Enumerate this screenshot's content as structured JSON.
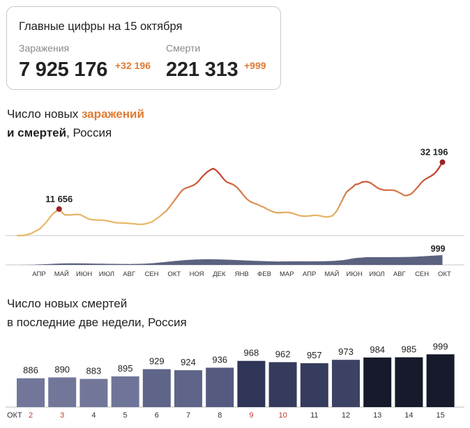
{
  "summary": {
    "title": "Главные цифры на 15 октября",
    "infections_label": "Заражения",
    "infections_value": "7 925 176",
    "infections_delta": "+32 196",
    "deaths_label": "Смерти",
    "deaths_value": "221 313",
    "deaths_delta": "+999"
  },
  "line_heading": {
    "line1_prefix": "Число новых ",
    "line1_highlight": "заражений",
    "line2_bold": "и смертей",
    "line2_rest": ", Россия"
  },
  "bar_heading": {
    "line1": "Число новых смертей",
    "line2": "в последние две недели, Россия"
  },
  "colors": {
    "infections_low": "#e8b86a",
    "infections_high": "#c0392b",
    "deaths_fill": "#3e4768",
    "peak_marker": "#9b2226",
    "accent": "#e07a33"
  },
  "chart_data": [
    {
      "type": "line",
      "x_unit": "month",
      "x_tick_labels": [
        "АПР",
        "МАЙ",
        "ИЮН",
        "ИЮЛ",
        "АВГ",
        "СЕН",
        "ОКТ",
        "НОЯ",
        "ДЕК",
        "ЯНВ",
        "ФЕВ",
        "МАР",
        "АПР",
        "МАЙ",
        "ИЮН",
        "ИЮЛ",
        "АВГ",
        "СЕН",
        "ОКТ"
      ],
      "series": [
        {
          "name": "заражений",
          "points": [
            [
              0,
              0
            ],
            [
              0.3,
              120
            ],
            [
              0.6,
              900
            ],
            [
              1.0,
              3000
            ],
            [
              1.3,
              6000
            ],
            [
              1.6,
              9500
            ],
            [
              1.85,
              11656
            ],
            [
              2.1,
              9500
            ],
            [
              2.4,
              9000
            ],
            [
              2.8,
              8900
            ],
            [
              3.2,
              7500
            ],
            [
              3.6,
              6700
            ],
            [
              4.0,
              6300
            ],
            [
              4.5,
              5800
            ],
            [
              5.0,
              5100
            ],
            [
              5.3,
              5000
            ],
            [
              5.6,
              5200
            ],
            [
              6.0,
              6000
            ],
            [
              6.3,
              8000
            ],
            [
              6.6,
              11000
            ],
            [
              6.9,
              15000
            ],
            [
              7.3,
              19000
            ],
            [
              7.6,
              21000
            ],
            [
              7.9,
              23500
            ],
            [
              8.2,
              26000
            ],
            [
              8.5,
              27500
            ],
            [
              8.7,
              28800
            ],
            [
              8.85,
              28500
            ],
            [
              9.0,
              27500
            ],
            [
              9.3,
              24000
            ],
            [
              9.6,
              21500
            ],
            [
              9.9,
              19000
            ],
            [
              10.2,
              16500
            ],
            [
              10.5,
              14500
            ],
            [
              10.8,
              12500
            ],
            [
              11.1,
              11300
            ],
            [
              11.5,
              10500
            ],
            [
              12.0,
              9800
            ],
            [
              12.5,
              9100
            ],
            [
              13.0,
              8600
            ],
            [
              13.4,
              8500
            ],
            [
              13.7,
              8400
            ],
            [
              14.0,
              9000
            ],
            [
              14.2,
              11000
            ],
            [
              14.4,
              14500
            ],
            [
              14.6,
              18500
            ],
            [
              14.8,
              21000
            ],
            [
              15.0,
              23300
            ],
            [
              15.3,
              23500
            ],
            [
              15.6,
              22500
            ],
            [
              15.9,
              21500
            ],
            [
              16.2,
              21000
            ],
            [
              16.6,
              19500
            ],
            [
              16.9,
              18500
            ],
            [
              17.2,
              18000
            ],
            [
              17.5,
              19000
            ],
            [
              17.8,
              21000
            ],
            [
              18.1,
              24000
            ],
            [
              18.4,
              27000
            ],
            [
              18.7,
              30000
            ],
            [
              18.87,
              32196
            ]
          ],
          "y_range": [
            0,
            33000
          ],
          "labeled_points": [
            {
              "label": "11 656",
              "x": 1.85,
              "y": 11656
            },
            {
              "label": "32 196",
              "x": 18.87,
              "y": 32196
            }
          ]
        },
        {
          "name": "смертей",
          "type": "area",
          "points": [
            [
              0,
              0
            ],
            [
              0.5,
              10
            ],
            [
              1.0,
              50
            ],
            [
              1.5,
              100
            ],
            [
              2.0,
              150
            ],
            [
              2.5,
              160
            ],
            [
              3.0,
              150
            ],
            [
              3.5,
              130
            ],
            [
              4.0,
              110
            ],
            [
              4.5,
              100
            ],
            [
              5.0,
              95
            ],
            [
              5.5,
              110
            ],
            [
              6.0,
              170
            ],
            [
              6.5,
              280
            ],
            [
              7.0,
              400
            ],
            [
              7.5,
              500
            ],
            [
              8.0,
              560
            ],
            [
              8.5,
              580
            ],
            [
              9.0,
              560
            ],
            [
              9.5,
              520
            ],
            [
              10.0,
              470
            ],
            [
              10.5,
              420
            ],
            [
              11.0,
              380
            ],
            [
              11.5,
              350
            ],
            [
              12.0,
              360
            ],
            [
              12.5,
              370
            ],
            [
              13.0,
              360
            ],
            [
              13.5,
              370
            ],
            [
              14.0,
              400
            ],
            [
              14.5,
              500
            ],
            [
              15.0,
              700
            ],
            [
              15.5,
              790
            ],
            [
              16.0,
              790
            ],
            [
              16.5,
              790
            ],
            [
              17.0,
              800
            ],
            [
              17.5,
              820
            ],
            [
              18.0,
              880
            ],
            [
              18.5,
              950
            ],
            [
              18.87,
              999
            ]
          ],
          "y_range": [
            0,
            999
          ],
          "labeled_points": [
            {
              "label": "999",
              "x": 18.87,
              "y": 999
            }
          ]
        }
      ]
    },
    {
      "type": "bar",
      "x_prefix": "ОКТ",
      "categories": [
        "2",
        "3",
        "4",
        "5",
        "6",
        "7",
        "8",
        "9",
        "10",
        "11",
        "12",
        "13",
        "14",
        "15"
      ],
      "weekend_categories": [
        "2",
        "3",
        "9",
        "10"
      ],
      "values": [
        886,
        890,
        883,
        895,
        929,
        924,
        936,
        968,
        962,
        957,
        973,
        984,
        985,
        999
      ],
      "bar_colors": [
        "#72779a",
        "#72779a",
        "#72779a",
        "#6f7599",
        "#5f6589",
        "#5f6589",
        "#555b80",
        "#2e3556",
        "#353b5c",
        "#363c5d",
        "#3c4263",
        "#161a2a",
        "#161a2a",
        "#161a2a"
      ]
    }
  ]
}
